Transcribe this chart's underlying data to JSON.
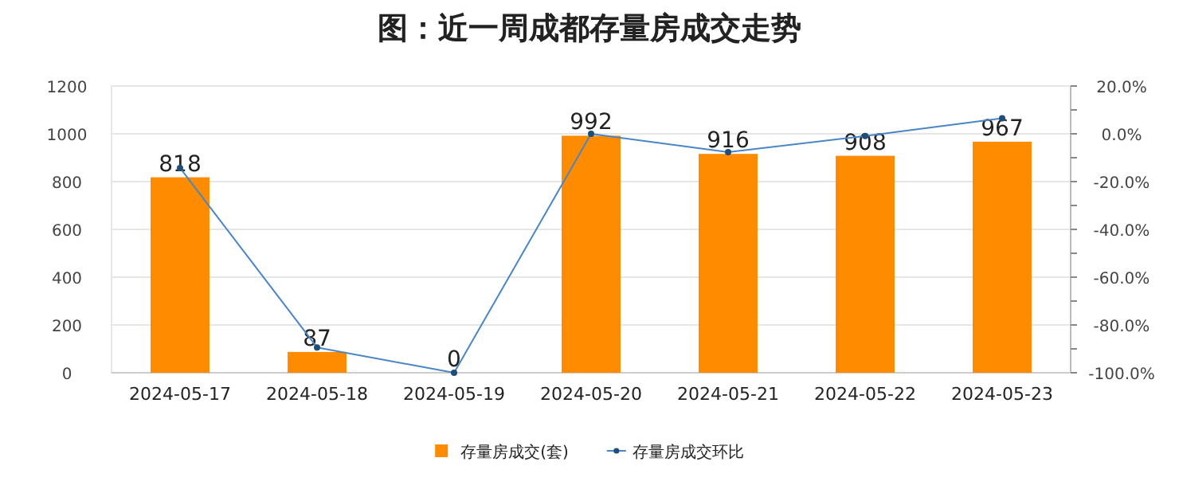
{
  "chart_data": {
    "type": "bar",
    "title": "图：近一周成都存量房成交走势",
    "categories": [
      "2024-05-17",
      "2024-05-18",
      "2024-05-19",
      "2024-05-20",
      "2024-05-21",
      "2024-05-22",
      "2024-05-23"
    ],
    "series": [
      {
        "name": "存量房成交(套)",
        "color": "#ff8c00",
        "values": [
          818,
          87,
          0,
          992,
          916,
          908,
          967
        ],
        "value_labels": [
          "818",
          "87",
          "0",
          "992",
          "916",
          "908",
          "967"
        ]
      },
      {
        "name": "存量房成交环比",
        "type": "line",
        "axis": "y2",
        "color": "#4a86c5",
        "marker": "circle",
        "values": [
          -14.3,
          -89.4,
          -100,
          0,
          -7.7,
          -0.9,
          6.5
        ]
      }
    ],
    "ylim": [
      0,
      1200
    ],
    "yticks": [
      0,
      200,
      400,
      600,
      800,
      1000,
      1200
    ],
    "y2lim": [
      -100,
      20
    ],
    "y2ticks": [
      {
        "value": -100,
        "label": "-100.0%"
      },
      {
        "value": -90,
        "label": null
      },
      {
        "value": -80,
        "label": "-80.0%"
      },
      {
        "value": -70,
        "label": null
      },
      {
        "value": -60,
        "label": "-60.0%"
      },
      {
        "value": -50,
        "label": null
      },
      {
        "value": -40,
        "label": "-40.0%"
      },
      {
        "value": -30,
        "label": null
      },
      {
        "value": -20,
        "label": "-20.0%"
      },
      {
        "value": -10,
        "label": null
      },
      {
        "value": 0,
        "label": "0.0%"
      },
      {
        "value": 10,
        "label": null
      },
      {
        "value": 20,
        "label": "20.0%"
      }
    ],
    "grid": "y",
    "legend": "bottom"
  }
}
